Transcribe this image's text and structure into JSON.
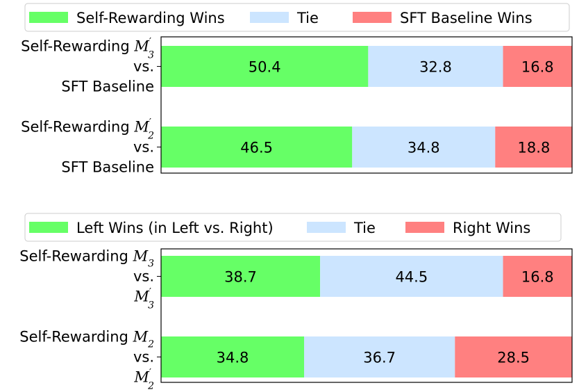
{
  "chart_data": [
    {
      "type": "bar",
      "orientation": "horizontal",
      "stacked": true,
      "xlim": [
        0,
        100
      ],
      "legend_placement": "top",
      "categories": [
        "Self-Rewarding M'_3 vs. SFT Baseline",
        "Self-Rewarding M'_2 vs. SFT Baseline"
      ],
      "category_lines": [
        [
          [
            {
              "t": "Self-Rewarding "
            },
            {
              "m": "M",
              "sub": "3",
              "sup": "′"
            }
          ],
          [
            {
              "t": "vs."
            }
          ],
          [
            {
              "t": "SFT Baseline"
            }
          ]
        ],
        [
          [
            {
              "t": "Self-Rewarding "
            },
            {
              "m": "M",
              "sub": "2",
              "sup": "′"
            }
          ],
          [
            {
              "t": "vs."
            }
          ],
          [
            {
              "t": "SFT Baseline"
            }
          ]
        ]
      ],
      "series": [
        {
          "name": "Self-Rewarding Wins",
          "color": "#66ff66",
          "values": [
            50.4,
            46.5
          ]
        },
        {
          "name": "Tie",
          "color": "#cce5ff",
          "values": [
            32.8,
            34.8
          ]
        },
        {
          "name": "SFT Baseline Wins",
          "color": "#ff8080",
          "values": [
            16.8,
            18.8
          ]
        }
      ]
    },
    {
      "type": "bar",
      "orientation": "horizontal",
      "stacked": true,
      "xlim": [
        0,
        100
      ],
      "legend_placement": "top",
      "categories": [
        "Self-Rewarding M_3 vs. M'_3",
        "Self-Rewarding M_2 vs. M'_2"
      ],
      "category_lines": [
        [
          [
            {
              "t": "Self-Rewarding "
            },
            {
              "m": "M",
              "sub": "3"
            }
          ],
          [
            {
              "t": "vs."
            }
          ],
          [
            {
              "m": "M",
              "sub": "3",
              "sup": "′"
            }
          ]
        ],
        [
          [
            {
              "t": "Self-Rewarding "
            },
            {
              "m": "M",
              "sub": "2"
            }
          ],
          [
            {
              "t": "vs."
            }
          ],
          [
            {
              "m": "M",
              "sub": "2",
              "sup": "′"
            }
          ]
        ]
      ],
      "series": [
        {
          "name": "Left Wins (in Left vs. Right)",
          "color": "#66ff66",
          "values": [
            38.7,
            34.8
          ]
        },
        {
          "name": "Tie",
          "color": "#cce5ff",
          "values": [
            44.5,
            36.7
          ]
        },
        {
          "name": "Right Wins",
          "color": "#ff8080",
          "values": [
            16.8,
            28.5
          ]
        }
      ]
    }
  ]
}
